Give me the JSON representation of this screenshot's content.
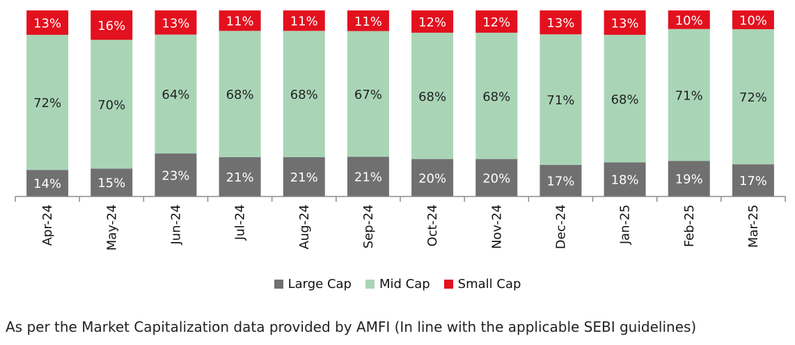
{
  "chart_data": {
    "type": "bar",
    "stacked": true,
    "categories": [
      "Apr-24",
      "May-24",
      "Jun-24",
      "Jul-24",
      "Aug-24",
      "Sep-24",
      "Oct-24",
      "Nov-24",
      "Dec-24",
      "Jan-25",
      "Feb-25",
      "Mar-25"
    ],
    "series": [
      {
        "name": "Large Cap",
        "color": "#707070",
        "label_color": "#ffffff",
        "values": [
          14,
          15,
          23,
          21,
          21,
          21,
          20,
          20,
          17,
          18,
          19,
          17
        ]
      },
      {
        "name": "Mid Cap",
        "color": "#a9d5b6",
        "label_color": "#222222",
        "values": [
          72,
          70,
          64,
          68,
          68,
          67,
          68,
          68,
          71,
          68,
          71,
          72
        ]
      },
      {
        "name": "Small Cap",
        "color": "#e3101e",
        "label_color": "#ffffff",
        "values": [
          13,
          16,
          13,
          11,
          11,
          11,
          12,
          12,
          13,
          13,
          10,
          10
        ]
      }
    ],
    "value_suffix": "%",
    "legend_position": "bottom",
    "grid": false
  },
  "footnote": "As per the Market Capitalization data provided by AMFI (In line with the applicable SEBI guidelines)"
}
